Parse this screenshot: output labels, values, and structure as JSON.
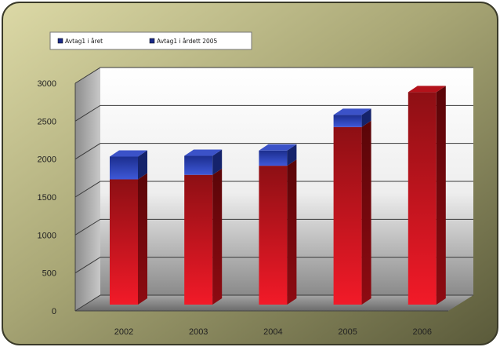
{
  "chart_data": {
    "type": "bar",
    "stacked": true,
    "categories": [
      "2002",
      "2003",
      "2004",
      "2005",
      "2006"
    ],
    "series": [
      {
        "name": "Avtag1 i året",
        "color": "#d8101c",
        "values": [
          1650,
          1710,
          1830,
          2340,
          2800
        ]
      },
      {
        "name": "Avtag1 i årdett 2005",
        "color": "#2a3fb0",
        "values": [
          300,
          250,
          200,
          160,
          0
        ]
      }
    ],
    "ylim": [
      0,
      3000
    ],
    "yticks": [
      0,
      500,
      1000,
      1500,
      2000,
      2500,
      3000
    ],
    "grid": true,
    "legend": "top-left",
    "title": "",
    "xlabel": "",
    "ylabel": ""
  }
}
